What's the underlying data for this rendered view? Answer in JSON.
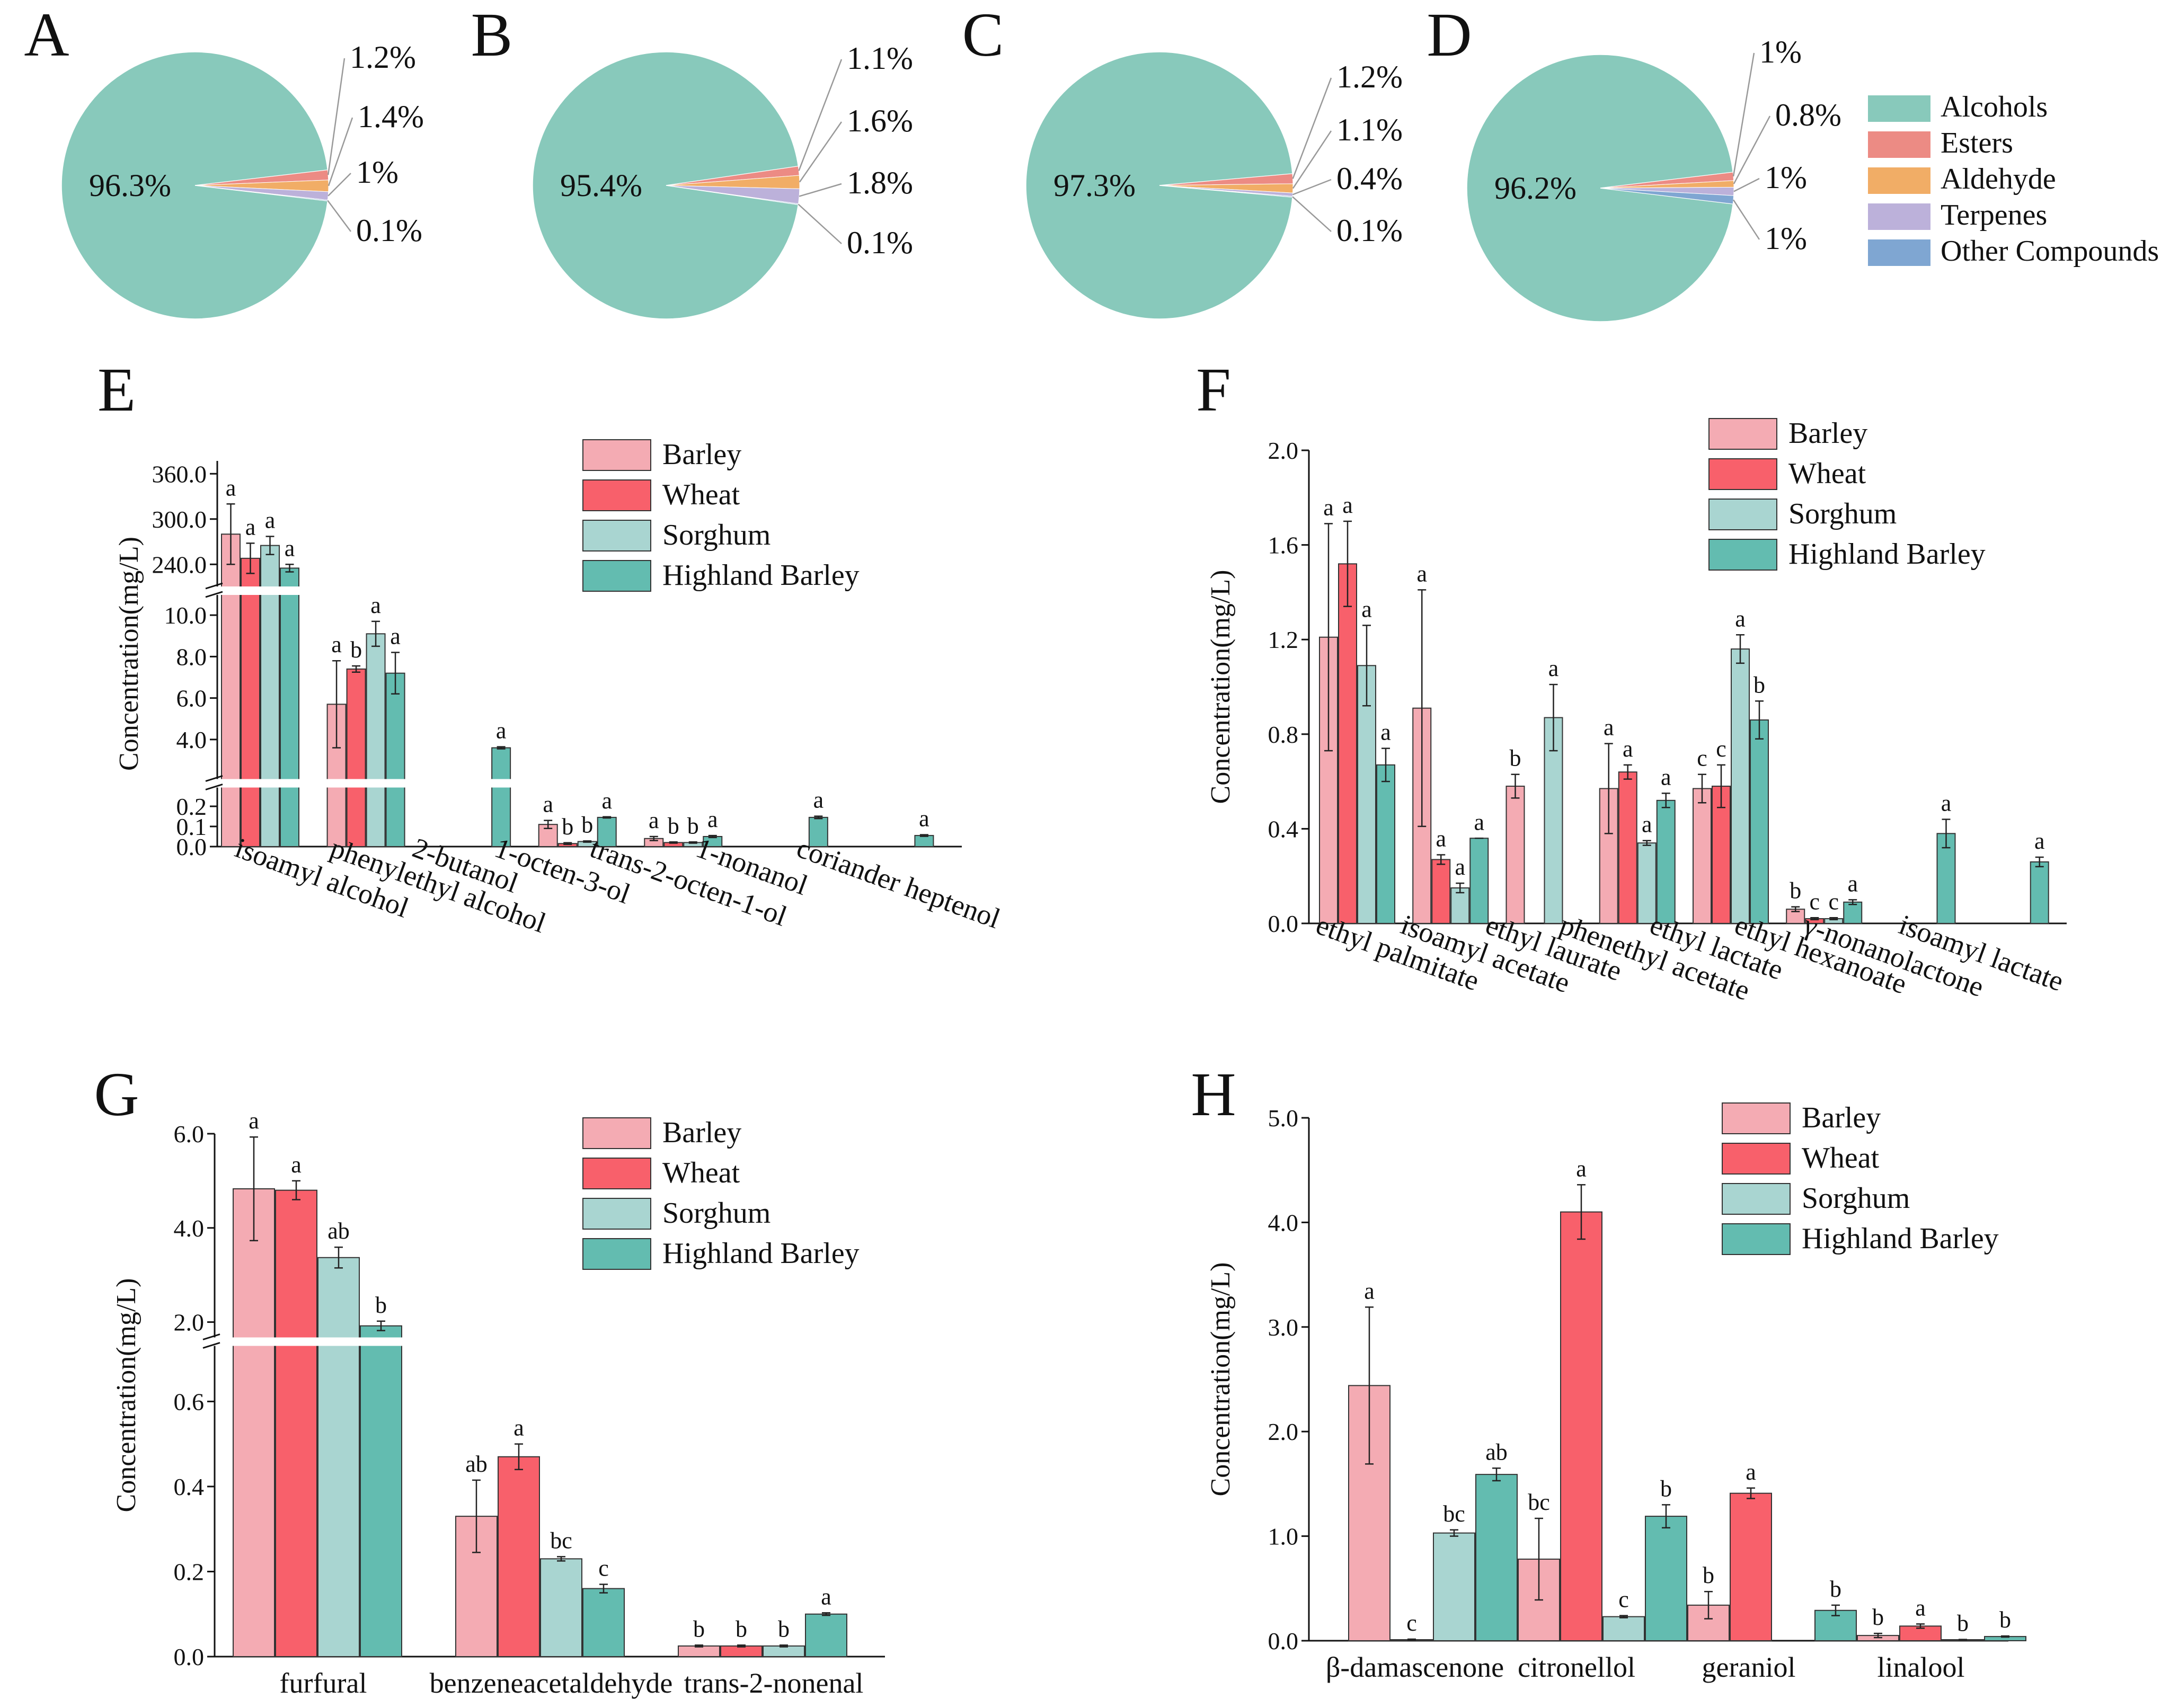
{
  "colors": {
    "Barley": "#f4abb3",
    "Wheat": "#f8606b",
    "Sorghum": "#a9d5d1",
    "Highland Barley": "#63bcb0",
    "Alcohols": "#88c9bb",
    "Esters": "#ec8b84",
    "Aldehyde": "#f1ad66",
    "Terpenes": "#bcb1da",
    "Other Compounds": "#7fa6d2"
  },
  "chart_data": [
    {
      "type": "pie",
      "panel": "A",
      "slices": [
        {
          "name": "Alcohols",
          "value": 96.3,
          "label": "96.3%"
        },
        {
          "name": "Esters",
          "value": 1.2,
          "label": "1.2%"
        },
        {
          "name": "Aldehyde",
          "value": 1.4,
          "label": "1.4%"
        },
        {
          "name": "Terpenes",
          "value": 1.0,
          "label": "1%"
        },
        {
          "name": "Other Compounds",
          "value": 0.1,
          "label": "0.1%"
        }
      ]
    },
    {
      "type": "pie",
      "panel": "B",
      "slices": [
        {
          "name": "Alcohols",
          "value": 95.4,
          "label": "95.4%"
        },
        {
          "name": "Esters",
          "value": 1.1,
          "label": "1.1%"
        },
        {
          "name": "Aldehyde",
          "value": 1.6,
          "label": "1.6%"
        },
        {
          "name": "Terpenes",
          "value": 1.8,
          "label": "1.8%"
        },
        {
          "name": "Other Compounds",
          "value": 0.1,
          "label": "0.1%"
        }
      ]
    },
    {
      "type": "pie",
      "panel": "C",
      "slices": [
        {
          "name": "Alcohols",
          "value": 97.3,
          "label": "97.3%"
        },
        {
          "name": "Esters",
          "value": 1.2,
          "label": "1.2%"
        },
        {
          "name": "Aldehyde",
          "value": 1.1,
          "label": "1.1%"
        },
        {
          "name": "Terpenes",
          "value": 0.4,
          "label": "0.4%"
        },
        {
          "name": "Other Compounds",
          "value": 0.1,
          "label": "0.1%"
        }
      ]
    },
    {
      "type": "pie",
      "panel": "D",
      "legend": [
        "Alcohols",
        "Esters",
        "Aldehyde",
        "Terpenes",
        "Other Compounds"
      ],
      "slices": [
        {
          "name": "Alcohols",
          "value": 96.2,
          "label": "96.2%"
        },
        {
          "name": "Esters",
          "value": 1.0,
          "label": "1%"
        },
        {
          "name": "Aldehyde",
          "value": 0.8,
          "label": "0.8%"
        },
        {
          "name": "Terpenes",
          "value": 1.0,
          "label": "1%"
        },
        {
          "name": "Other Compounds",
          "value": 1.0,
          "label": "1%"
        }
      ]
    },
    {
      "type": "bar",
      "panel": "E",
      "ylabel": "Concentration(mg/L)",
      "legend": [
        "Barley",
        "Wheat",
        "Sorghum",
        "Highland Barley"
      ],
      "segments": [
        {
          "range": [
            0,
            0.2
          ],
          "ticks": [
            "0.0",
            "0.1",
            "0.2"
          ]
        },
        {
          "range": [
            3.0,
            11.0
          ],
          "ticks": [
            "4.0",
            "6.0",
            "8.0",
            "10.0"
          ]
        },
        {
          "range": [
            210,
            370
          ],
          "ticks": [
            "240.0",
            "300.0",
            "360.0"
          ]
        }
      ],
      "categories": [
        "isoamyl alcohol",
        "phenylethyl alcohol",
        "2-butanol",
        "1-octen-3-ol",
        "trans-2-octen-1-ol",
        "1-nonanol",
        "coriander heptenol"
      ],
      "series": [
        {
          "name": "Barley",
          "values": [
            280,
            5.7,
            null,
            0.11,
            0.04,
            null,
            null
          ],
          "errors": [
            40,
            2.1,
            null,
            0.02,
            0.01,
            null,
            null
          ],
          "sig": [
            "a",
            "a",
            null,
            "a",
            "a",
            null,
            null
          ]
        },
        {
          "name": "Wheat",
          "values": [
            248,
            7.4,
            null,
            0.015,
            0.02,
            null,
            null
          ],
          "errors": [
            20,
            0.15,
            null,
            0.004,
            0.003,
            null,
            null
          ],
          "sig": [
            "a",
            "b",
            null,
            "b",
            "b",
            null,
            null
          ]
        },
        {
          "name": "Sorghum",
          "values": [
            265,
            9.1,
            null,
            0.025,
            0.02,
            null,
            null
          ],
          "errors": [
            12,
            0.6,
            null,
            0.003,
            0.003,
            null,
            null
          ],
          "sig": [
            "a",
            "a",
            null,
            "b",
            "b",
            null,
            null
          ]
        },
        {
          "name": "Highland Barley",
          "values": [
            235,
            7.2,
            3.6,
            0.145,
            0.05,
            0.145,
            0.055
          ],
          "errors": [
            5,
            1.0,
            0.05,
            0.003,
            0.005,
            0.006,
            0.004
          ],
          "sig": [
            "a",
            "a",
            "a",
            "a",
            "a",
            "a",
            "a"
          ]
        }
      ]
    },
    {
      "type": "bar",
      "panel": "F",
      "ylabel": "Concentration(mg/L)",
      "ylim": [
        0,
        2.0
      ],
      "yticks": [
        "0.0",
        "0.4",
        "0.8",
        "1.2",
        "1.6",
        "2.0"
      ],
      "legend": [
        "Barley",
        "Wheat",
        "Sorghum",
        "Highland Barley"
      ],
      "categories": [
        "ethyl palmitate",
        "isoamyl acetate",
        "ethyl laurate",
        "phenethyl acetate",
        "ethyl lactate",
        "ethyl hexanoate",
        "γ-nonanolactone",
        "isoamyl lactate"
      ],
      "series": [
        {
          "name": "Barley",
          "values": [
            1.21,
            0.91,
            0.58,
            0.57,
            0.57,
            0.06,
            null,
            null
          ],
          "errors": [
            0.48,
            0.5,
            0.05,
            0.19,
            0.06,
            0.01,
            null,
            null
          ],
          "sig": [
            "a",
            "a",
            "b",
            "a",
            "c",
            "b",
            null,
            null
          ]
        },
        {
          "name": "Wheat",
          "values": [
            1.52,
            0.27,
            null,
            0.64,
            0.58,
            0.02,
            null,
            null
          ],
          "errors": [
            0.18,
            0.02,
            null,
            0.03,
            0.09,
            0.004,
            null,
            null
          ],
          "sig": [
            "a",
            "a",
            null,
            "a",
            "c",
            "c",
            null,
            null
          ]
        },
        {
          "name": "Sorghum",
          "values": [
            1.09,
            0.15,
            0.87,
            0.34,
            1.16,
            0.02,
            null,
            null
          ],
          "errors": [
            0.17,
            0.02,
            0.14,
            0.01,
            0.06,
            0.004,
            null,
            null
          ],
          "sig": [
            "a",
            "a",
            "a",
            "a",
            "a",
            "c",
            null,
            null
          ]
        },
        {
          "name": "Highland Barley",
          "values": [
            0.67,
            0.36,
            null,
            0.52,
            0.86,
            0.09,
            0.38,
            0.26
          ],
          "errors": [
            0.07,
            0.0,
            null,
            0.03,
            0.08,
            0.01,
            0.06,
            0.02
          ],
          "sig": [
            "a",
            "a",
            null,
            "a",
            "b",
            "a",
            "a",
            "a"
          ]
        }
      ]
    },
    {
      "type": "bar",
      "panel": "G",
      "ylabel": "Concentration(mg/L)",
      "legend": [
        "Barley",
        "Wheat",
        "Sorghum",
        "Highland Barley"
      ],
      "segments": [
        {
          "range": [
            0,
            0.75
          ],
          "ticks": [
            "0.0",
            "0.2",
            "0.4",
            "0.6"
          ]
        },
        {
          "range": [
            1.5,
            6.0
          ],
          "ticks": [
            "2.0",
            "4.0",
            "6.0"
          ]
        }
      ],
      "categories": [
        "furfural",
        "benzeneacetaldehyde",
        "trans-2-nonenal"
      ],
      "series": [
        {
          "name": "Barley",
          "values": [
            4.83,
            0.33,
            0.025
          ],
          "errors": [
            1.1,
            0.085,
            0.002
          ],
          "sig": [
            "a",
            "ab",
            "b"
          ]
        },
        {
          "name": "Wheat",
          "values": [
            4.8,
            0.47,
            0.025
          ],
          "errors": [
            0.2,
            0.03,
            0.002
          ],
          "sig": [
            "a",
            "a",
            "b"
          ]
        },
        {
          "name": "Sorghum",
          "values": [
            3.37,
            0.23,
            0.025
          ],
          "errors": [
            0.22,
            0.005,
            0.002
          ],
          "sig": [
            "ab",
            "bc",
            "b"
          ]
        },
        {
          "name": "Highland Barley",
          "values": [
            1.92,
            0.16,
            0.1
          ],
          "errors": [
            0.1,
            0.01,
            0.003
          ],
          "sig": [
            "b",
            "c",
            "a"
          ]
        }
      ]
    },
    {
      "type": "bar",
      "panel": "H",
      "ylabel": "Concentration(mg/L)",
      "ylim": [
        0,
        5.0
      ],
      "yticks": [
        "0.0",
        "1.0",
        "2.0",
        "3.0",
        "4.0",
        "5.0"
      ],
      "legend": [
        "Barley",
        "Wheat",
        "Sorghum",
        "Highland Barley"
      ],
      "categories": [
        "β-damascenone",
        "citronellol",
        "geraniol",
        "linalool"
      ],
      "series": [
        {
          "name": "Barley",
          "values": [
            2.44,
            0.78,
            0.34,
            0.05
          ],
          "errors": [
            0.75,
            0.39,
            0.13,
            0.02
          ],
          "sig": [
            "a",
            "bc",
            "b",
            "b"
          ]
        },
        {
          "name": "Wheat",
          "values": [
            0.01,
            4.1,
            1.41,
            0.14
          ],
          "errors": [
            0.005,
            0.26,
            0.05,
            0.02
          ],
          "sig": [
            "c",
            "a",
            "a",
            "a"
          ]
        },
        {
          "name": "Sorghum",
          "values": [
            1.03,
            0.23,
            null,
            0.01
          ],
          "errors": [
            0.03,
            0.01,
            null,
            0.002
          ],
          "sig": [
            "bc",
            "c",
            null,
            "b"
          ]
        },
        {
          "name": "Highland Barley",
          "values": [
            1.59,
            1.19,
            0.29,
            0.04
          ],
          "errors": [
            0.06,
            0.11,
            0.05,
            0.005
          ],
          "sig": [
            "ab",
            "b",
            "b",
            "b"
          ]
        }
      ]
    }
  ]
}
